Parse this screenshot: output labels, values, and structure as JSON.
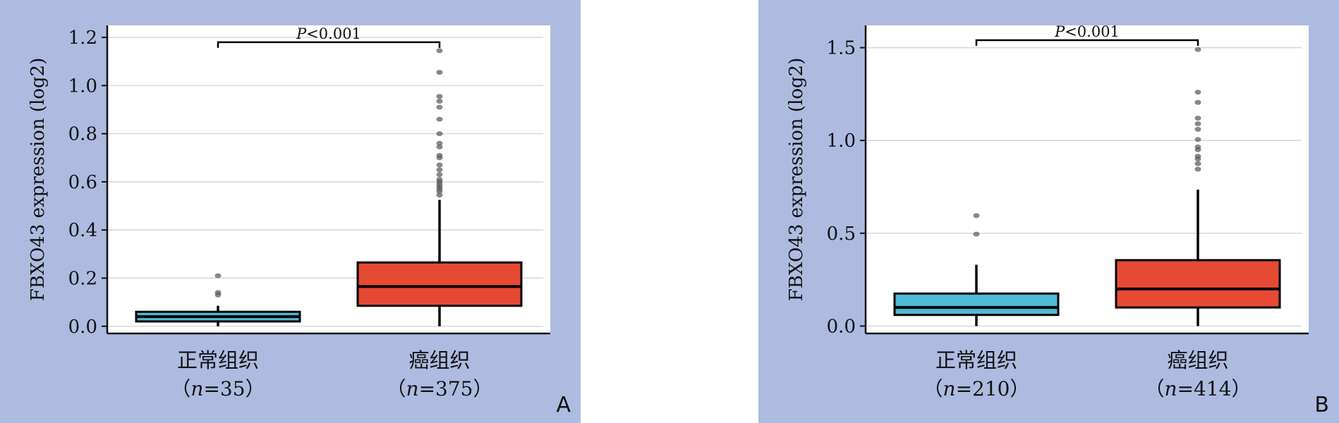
{
  "chart_data": [
    {
      "type": "box",
      "panel_label": "A",
      "ylabel": "FBXO43 expression (log2)",
      "ylim": [
        -0.03,
        1.25
      ],
      "yticks": [
        0.0,
        0.2,
        0.4,
        0.6,
        0.8,
        1.0,
        1.2
      ],
      "ytick_labels": [
        "0.0",
        "0.2",
        "0.4",
        "0.6",
        "0.8",
        "1.0",
        "1.2"
      ],
      "significance": {
        "label_italic": "P",
        "label_rest": "<0.001",
        "y": 1.18
      },
      "groups": [
        {
          "name": "正常组织",
          "n_label": "n",
          "n_value": "=35",
          "color": "#4fb9d6",
          "whisker_low": 0.0,
          "q1": 0.02,
          "median": 0.04,
          "q3": 0.06,
          "whisker_high": 0.085,
          "outliers": [
            0.13,
            0.14,
            0.21
          ]
        },
        {
          "name": "癌组织",
          "n_label": "n",
          "n_value": "=375",
          "color": "#e64a35",
          "whisker_low": 0.0,
          "q1": 0.085,
          "median": 0.165,
          "q3": 0.265,
          "whisker_high": 0.525,
          "outliers": [
            0.545,
            0.56,
            0.57,
            0.58,
            0.59,
            0.6,
            0.61,
            0.63,
            0.65,
            0.67,
            0.7,
            0.71,
            0.745,
            0.76,
            0.8,
            0.86,
            0.91,
            0.935,
            0.955,
            1.055,
            1.145
          ]
        }
      ]
    },
    {
      "type": "box",
      "panel_label": "B",
      "ylabel": "FBXO43 expression (log2)",
      "ylim": [
        -0.04,
        1.62
      ],
      "yticks": [
        0.0,
        0.5,
        1.0,
        1.5
      ],
      "ytick_labels": [
        "0.0",
        "0.5",
        "1.0",
        "1.5"
      ],
      "significance": {
        "label_italic": "P",
        "label_rest": "<0.001",
        "y": 1.54
      },
      "groups": [
        {
          "name": "正常组织",
          "n_label": "n",
          "n_value": "=210",
          "color": "#4fb9d6",
          "whisker_low": 0.0,
          "q1": 0.06,
          "median": 0.1,
          "q3": 0.175,
          "whisker_high": 0.33,
          "outliers": [
            0.495,
            0.595
          ]
        },
        {
          "name": "癌组织",
          "n_label": "n",
          "n_value": "=414",
          "color": "#e64a35",
          "whisker_low": 0.0,
          "q1": 0.1,
          "median": 0.2,
          "q3": 0.355,
          "whisker_high": 0.735,
          "outliers": [
            0.845,
            0.875,
            0.9,
            0.915,
            0.95,
            0.965,
            1.005,
            1.06,
            1.09,
            1.12,
            1.205,
            1.26,
            1.49
          ]
        }
      ]
    }
  ]
}
